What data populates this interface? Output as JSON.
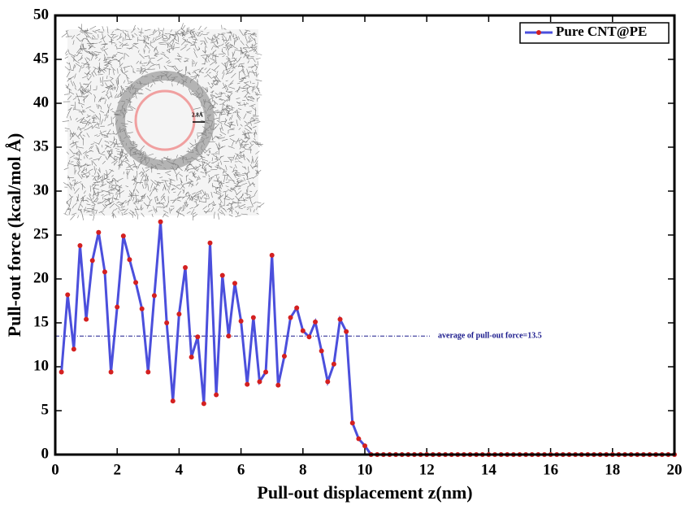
{
  "chart_data": {
    "type": "line",
    "xlabel": "Pull-out displacement z(nm)",
    "ylabel": "Pull-out force (kcal/mol Å)",
    "x": [
      0.2,
      0.4,
      0.6,
      0.8,
      1.0,
      1.2,
      1.4,
      1.6,
      1.8,
      2.0,
      2.2,
      2.4,
      2.6,
      2.8,
      3.0,
      3.2,
      3.4,
      3.6,
      3.8,
      4.0,
      4.2,
      4.4,
      4.6,
      4.8,
      5.0,
      5.2,
      5.4,
      5.6,
      5.8,
      6.0,
      6.2,
      6.4,
      6.6,
      6.8,
      7.0,
      7.2,
      7.4,
      7.6,
      7.8,
      8.0,
      8.2,
      8.4,
      8.6,
      8.8,
      9.0,
      9.2,
      9.4,
      9.6,
      9.8,
      10.0,
      10.2,
      10.4,
      10.6,
      10.8,
      11.0,
      11.2,
      11.4,
      11.6,
      11.8,
      12.0,
      12.2,
      12.4,
      12.6,
      12.8,
      13.0,
      13.2,
      13.4,
      13.6,
      13.8,
      14.0,
      14.2,
      14.4,
      14.6,
      14.8,
      15.0,
      15.2,
      15.4,
      15.6,
      15.8,
      16.0,
      16.2,
      16.4,
      16.6,
      16.8,
      17.0,
      17.2,
      17.4,
      17.6,
      17.8,
      18.0,
      18.2,
      18.4,
      18.6,
      18.8,
      19.0,
      19.2,
      19.4,
      19.6,
      19.8,
      20.0
    ],
    "series": [
      {
        "name": "Pure CNT@PE",
        "color": "#4b4fdc",
        "marker_color": "#d42020",
        "values": [
          9.4,
          18.2,
          12.0,
          23.8,
          15.4,
          22.1,
          25.3,
          20.8,
          9.4,
          16.8,
          24.9,
          22.2,
          19.6,
          16.6,
          9.4,
          18.1,
          26.5,
          15.0,
          6.1,
          16.0,
          21.3,
          11.1,
          13.4,
          5.8,
          24.1,
          6.8,
          20.4,
          13.5,
          19.5,
          15.2,
          8.0,
          15.6,
          8.3,
          9.4,
          22.7,
          7.9,
          11.2,
          15.6,
          16.7,
          14.1,
          13.4,
          15.1,
          11.8,
          8.3,
          10.3,
          15.4,
          14.0,
          3.6,
          1.8,
          1.0,
          0,
          0,
          0,
          0,
          0,
          0,
          0,
          0,
          0,
          0,
          0,
          0,
          0,
          0,
          0,
          0,
          0,
          0,
          0,
          0,
          0,
          0,
          0,
          0,
          0,
          0,
          0,
          0,
          0,
          0,
          0,
          0,
          0,
          0,
          0,
          0,
          0,
          0,
          0,
          0,
          0,
          0,
          0,
          0,
          0,
          0,
          0,
          0,
          0,
          0
        ]
      }
    ],
    "reference_line": {
      "y": 13.5,
      "x": [
        0,
        12.1
      ],
      "color": "#1a1a8c",
      "label": "average of pull-out force=13.5"
    },
    "inset_label": "2.8Å",
    "xlim": [
      0,
      20
    ],
    "xticks": [
      0,
      2,
      4,
      6,
      8,
      10,
      12,
      14,
      16,
      18,
      20
    ],
    "ylim": [
      0,
      50
    ],
    "yticks": [
      0,
      5,
      10,
      15,
      20,
      25,
      30,
      35,
      40,
      45,
      50
    ],
    "legend": "upper right",
    "grid": false
  }
}
